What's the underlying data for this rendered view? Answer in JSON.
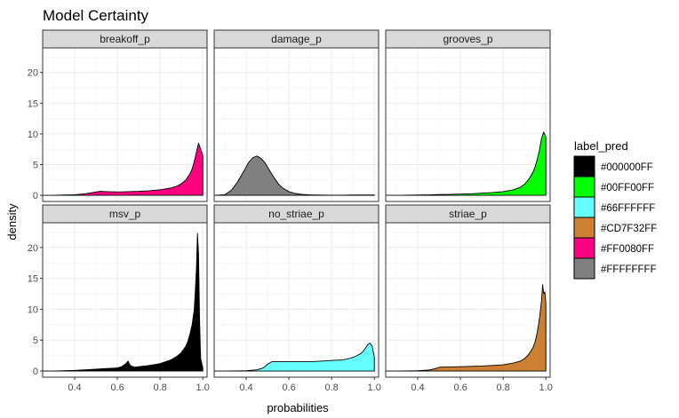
{
  "chart_data": {
    "type": "area",
    "title": "Model Certainty",
    "xlabel": "probabilities",
    "ylabel": "density",
    "xlim": [
      0.25,
      1.02
    ],
    "ylim": [
      -1,
      24
    ],
    "x_ticks": [
      0.4,
      0.6,
      0.8,
      1.0
    ],
    "x_tick_labels": [
      "0.4",
      "0.6",
      "0.8",
      "1.0"
    ],
    "y_ticks": [
      0,
      5,
      10,
      15,
      20
    ],
    "y_tick_labels": [
      "0",
      "5",
      "10",
      "15",
      "20"
    ],
    "grid": true,
    "legend": {
      "title": "label_pred",
      "position": "right",
      "items": [
        {
          "label": "#000000FF",
          "color": "#000000"
        },
        {
          "label": "#00FF00FF",
          "color": "#00FF00"
        },
        {
          "label": "#66FFFFFF",
          "color": "#66FFFF"
        },
        {
          "label": "#CD7F32FF",
          "color": "#CD7F32"
        },
        {
          "label": "#FF0080FF",
          "color": "#FF0080"
        },
        {
          "label": "#FFFFFFFF",
          "color": "#808080"
        }
      ]
    },
    "panels": [
      {
        "name": "breakoff_p",
        "color": "#FF0080",
        "x": [
          0.25,
          0.3,
          0.35,
          0.4,
          0.45,
          0.5,
          0.52,
          0.55,
          0.6,
          0.65,
          0.7,
          0.75,
          0.8,
          0.85,
          0.88,
          0.9,
          0.92,
          0.94,
          0.95,
          0.96,
          0.97,
          0.98,
          0.99,
          1.0
        ],
        "y": [
          0,
          0,
          0.05,
          0.1,
          0.25,
          0.55,
          0.65,
          0.6,
          0.55,
          0.6,
          0.65,
          0.75,
          0.9,
          1.2,
          1.5,
          1.9,
          2.5,
          3.5,
          4.3,
          5.5,
          7.0,
          8.5,
          7.5,
          6.5
        ]
      },
      {
        "name": "damage_p",
        "color": "#808080",
        "x": [
          0.25,
          0.3,
          0.33,
          0.36,
          0.39,
          0.41,
          0.43,
          0.45,
          0.47,
          0.49,
          0.51,
          0.53,
          0.55,
          0.57,
          0.6,
          0.63,
          0.66,
          0.7,
          0.75,
          0.8,
          0.85,
          0.9,
          0.95,
          1.0
        ],
        "y": [
          0,
          0.1,
          0.8,
          2.2,
          4.0,
          5.3,
          6.1,
          6.4,
          6.0,
          5.2,
          4.0,
          2.9,
          1.9,
          1.2,
          0.6,
          0.3,
          0.15,
          0.08,
          0.04,
          0.02,
          0.02,
          0.05,
          0.05,
          0.05
        ]
      },
      {
        "name": "grooves_p",
        "color": "#00FF00",
        "x": [
          0.25,
          0.3,
          0.35,
          0.4,
          0.45,
          0.5,
          0.55,
          0.6,
          0.65,
          0.7,
          0.75,
          0.8,
          0.85,
          0.88,
          0.9,
          0.92,
          0.94,
          0.95,
          0.96,
          0.97,
          0.98,
          0.99,
          1.0
        ],
        "y": [
          0,
          0,
          0.02,
          0.05,
          0.08,
          0.12,
          0.15,
          0.2,
          0.25,
          0.35,
          0.45,
          0.6,
          0.9,
          1.3,
          1.8,
          2.6,
          3.8,
          4.7,
          5.9,
          7.4,
          9.3,
          10.3,
          9.5
        ]
      },
      {
        "name": "msv_p",
        "color": "#000000",
        "x": [
          0.25,
          0.3,
          0.35,
          0.4,
          0.45,
          0.5,
          0.55,
          0.6,
          0.62,
          0.64,
          0.65,
          0.66,
          0.68,
          0.7,
          0.75,
          0.8,
          0.85,
          0.88,
          0.9,
          0.92,
          0.93,
          0.94,
          0.95,
          0.96,
          0.965,
          0.97,
          0.975,
          0.98,
          0.985,
          0.99,
          1.0
        ],
        "y": [
          0,
          0,
          0.05,
          0.1,
          0.2,
          0.3,
          0.4,
          0.5,
          0.7,
          1.2,
          1.6,
          0.9,
          0.6,
          0.7,
          0.9,
          1.2,
          1.8,
          2.4,
          3.0,
          4.0,
          4.8,
          6.0,
          7.5,
          10.0,
          13.0,
          16.5,
          22.3,
          19.0,
          8.0,
          2.0,
          0.5
        ]
      },
      {
        "name": "no_striae_p",
        "color": "#66FFFF",
        "x": [
          0.25,
          0.3,
          0.35,
          0.4,
          0.45,
          0.48,
          0.5,
          0.52,
          0.55,
          0.6,
          0.65,
          0.7,
          0.75,
          0.8,
          0.85,
          0.88,
          0.9,
          0.92,
          0.94,
          0.95,
          0.96,
          0.97,
          0.98,
          0.99,
          1.0
        ],
        "y": [
          0,
          0,
          0.02,
          0.05,
          0.2,
          0.5,
          1.1,
          1.5,
          1.5,
          1.5,
          1.5,
          1.5,
          1.6,
          1.7,
          1.8,
          2.0,
          2.2,
          2.5,
          2.9,
          3.3,
          3.8,
          4.3,
          4.5,
          4.0,
          2.2
        ]
      },
      {
        "name": "striae_p",
        "color": "#CD7F32",
        "x": [
          0.25,
          0.3,
          0.35,
          0.4,
          0.45,
          0.48,
          0.5,
          0.52,
          0.55,
          0.6,
          0.65,
          0.7,
          0.75,
          0.8,
          0.85,
          0.88,
          0.9,
          0.92,
          0.94,
          0.95,
          0.96,
          0.97,
          0.98,
          0.985,
          0.99,
          0.995,
          1.0
        ],
        "y": [
          0,
          0,
          0.02,
          0.05,
          0.15,
          0.35,
          0.6,
          0.65,
          0.65,
          0.7,
          0.75,
          0.8,
          0.9,
          1.0,
          1.3,
          1.6,
          2.0,
          2.7,
          3.8,
          4.8,
          6.3,
          8.5,
          11.5,
          14.0,
          12.5,
          12.8,
          11.0
        ]
      }
    ]
  }
}
